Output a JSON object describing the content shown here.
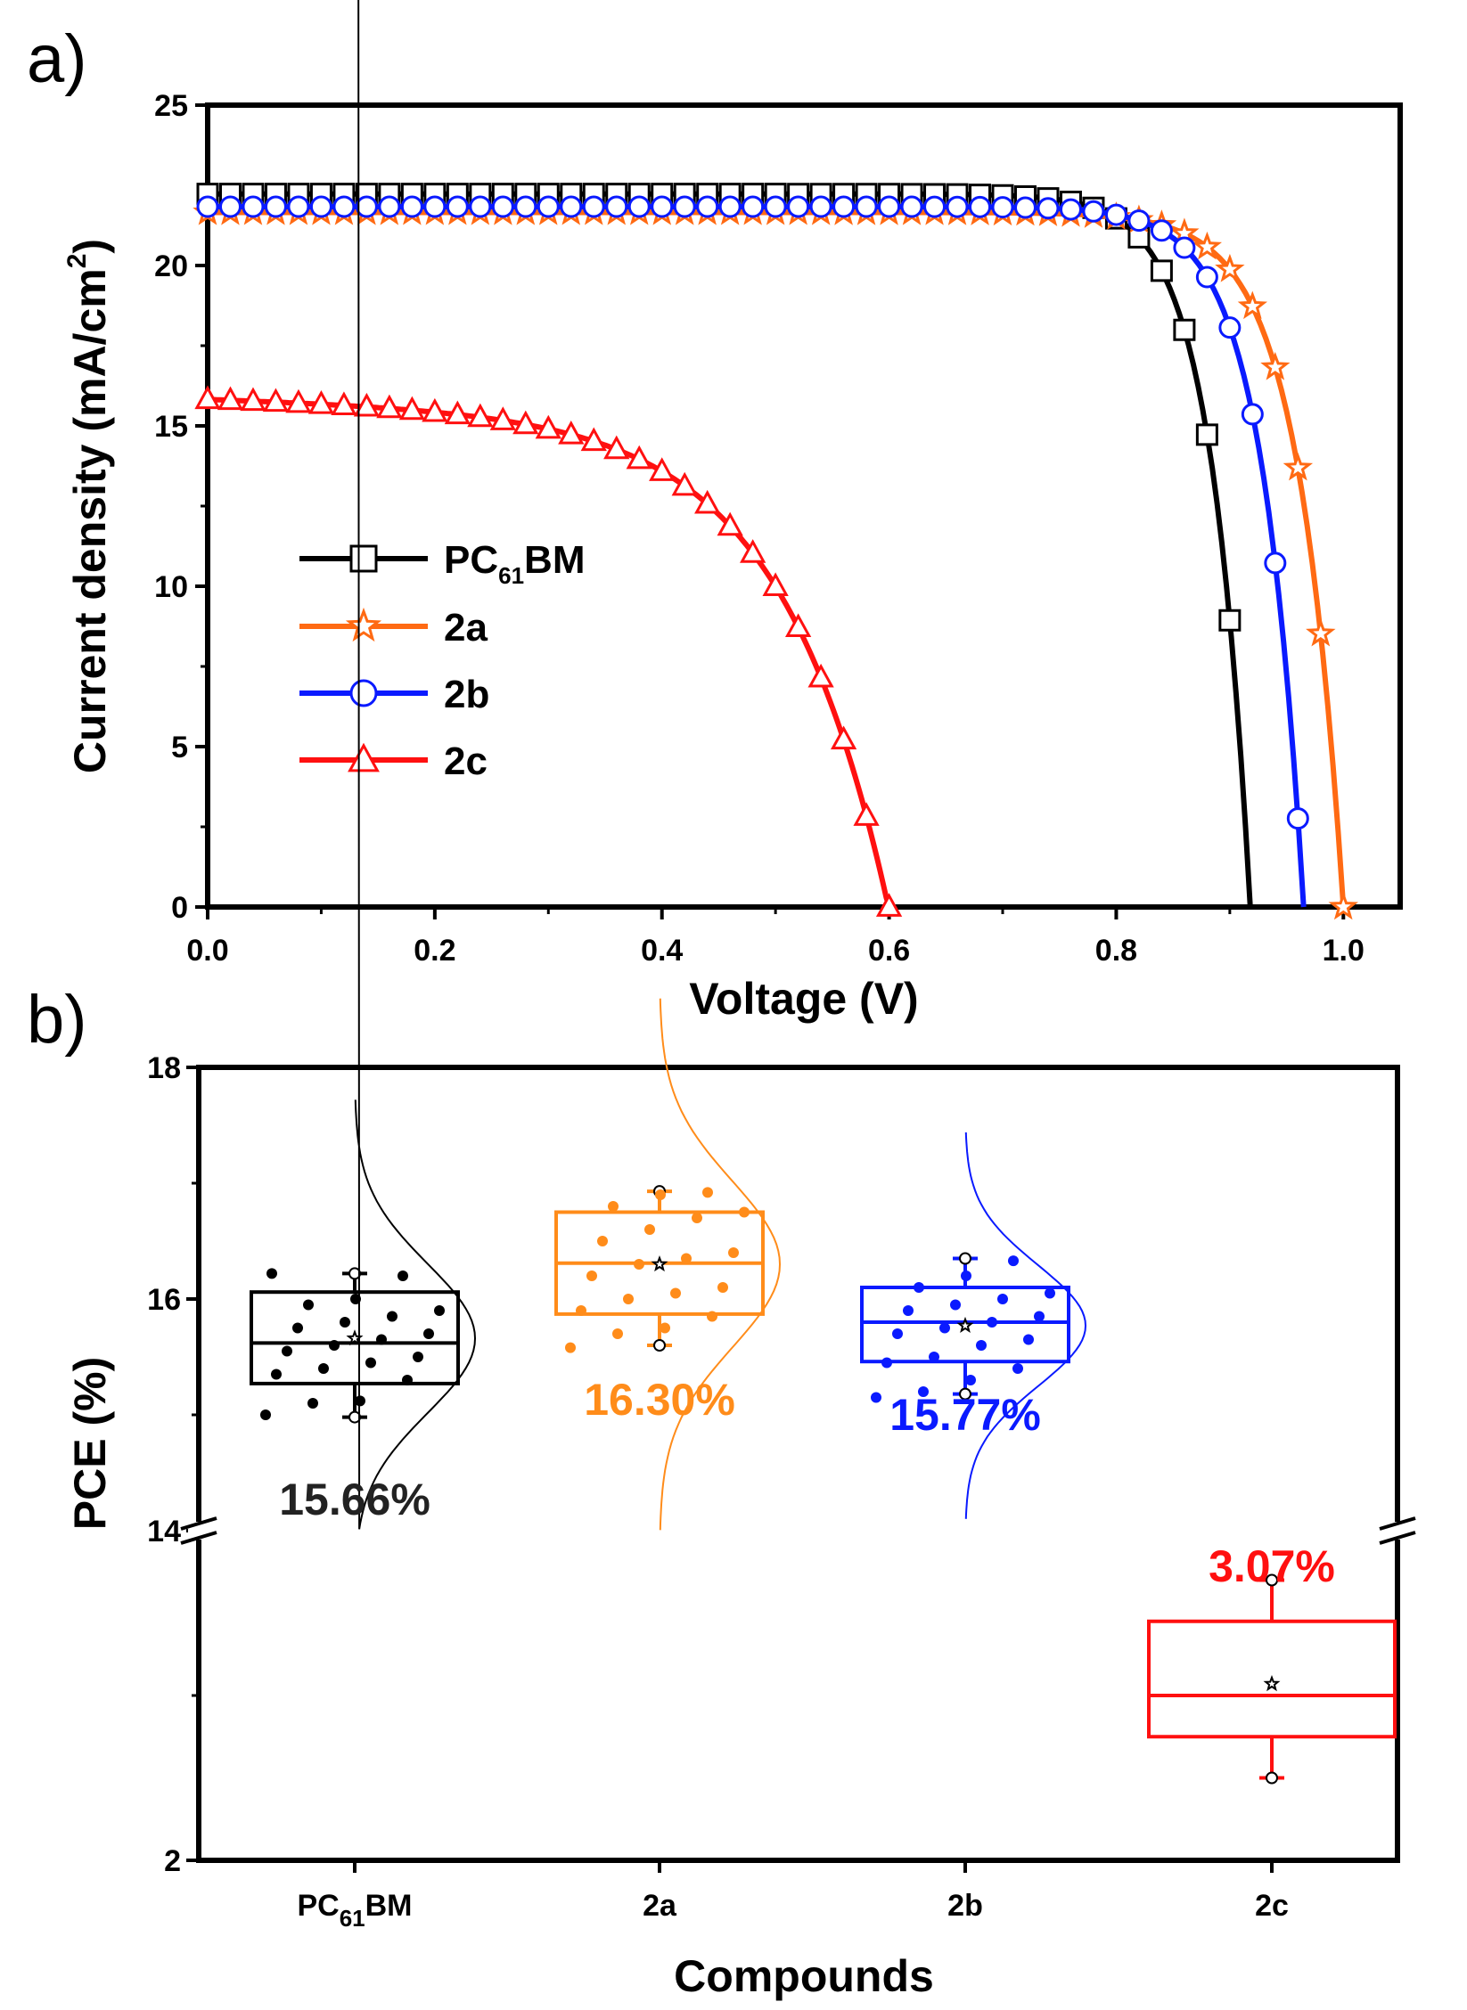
{
  "chart_data": [
    {
      "panel": "a)",
      "type": "line",
      "xlabel": "Voltage (V)",
      "ylabel_pre": "Current density (mA/cm",
      "ylabel_sup": "2",
      "ylabel_post": ")",
      "xlim": [
        0.0,
        1.05
      ],
      "ylim": [
        0,
        25
      ],
      "xticks": [
        "0.0",
        "0.2",
        "0.4",
        "0.6",
        "0.8",
        "1.0"
      ],
      "yticks": [
        "0",
        "5",
        "10",
        "15",
        "20",
        "25"
      ],
      "legend_position": "middle-left",
      "series": [
        {
          "key": "pcbm",
          "name": "PC61BM",
          "label_main": "PC",
          "label_sub": "61",
          "label_tail": "BM",
          "color": "#000000",
          "marker": "square",
          "jsc": 21.8,
          "voc": 0.918,
          "knee": 0.78,
          "sharp": 0.035
        },
        {
          "key": "2a",
          "name": "2a",
          "label_main": "2a",
          "label_sub": "",
          "label_tail": "",
          "color": "#ff6a13",
          "marker": "star",
          "jsc": 21.0,
          "voc": 1.0,
          "knee": 0.86,
          "sharp": 0.04
        },
        {
          "key": "2b",
          "name": "2b",
          "label_main": "2b",
          "label_sub": "",
          "label_tail": "",
          "color": "#0a1aff",
          "marker": "circle",
          "jsc": 21.4,
          "voc": 0.965,
          "knee": 0.82,
          "sharp": 0.037
        },
        {
          "key": "2c",
          "name": "2c",
          "label_main": "2c",
          "label_sub": "",
          "label_tail": "",
          "color": "#ff1010",
          "marker": "triangle",
          "jsc": 15.2,
          "voc": 0.603,
          "knee": 0.3,
          "sharp": 0.095
        }
      ]
    },
    {
      "panel": "b)",
      "type": "box",
      "xlabel": "Compounds",
      "ylabel": "PCE (%)",
      "yticks": [
        "2",
        "14",
        "16",
        "18"
      ],
      "categories": [
        {
          "key": "pcbm",
          "label_main": "PC",
          "label_sub": "61",
          "label_tail": "BM",
          "color": "#000000",
          "q1": 15.27,
          "median": 15.62,
          "q3": 16.06,
          "mean": 15.66,
          "wlo": 14.98,
          "whi": 16.22,
          "value_label": "15.66%",
          "points": [
            15.0,
            15.1,
            15.12,
            15.3,
            15.35,
            15.4,
            15.45,
            15.5,
            15.55,
            15.6,
            15.65,
            15.7,
            15.75,
            15.8,
            15.85,
            15.9,
            15.95,
            16.0,
            16.2,
            16.22
          ]
        },
        {
          "key": "2a",
          "label_main": "2a",
          "label_sub": "",
          "label_tail": "",
          "color": "#ff8c1a",
          "q1": 15.87,
          "median": 16.31,
          "q3": 16.75,
          "mean": 16.3,
          "wlo": 15.6,
          "whi": 16.93,
          "value_label": "16.30%",
          "points": [
            15.58,
            15.7,
            15.75,
            15.85,
            15.9,
            16.0,
            16.05,
            16.1,
            16.2,
            16.3,
            16.35,
            16.4,
            16.5,
            16.6,
            16.7,
            16.75,
            16.8,
            16.9,
            16.92
          ]
        },
        {
          "key": "2b",
          "label_main": "2b",
          "label_sub": "",
          "label_tail": "",
          "color": "#0a1aff",
          "q1": 15.46,
          "median": 15.8,
          "q3": 16.1,
          "mean": 15.77,
          "wlo": 15.18,
          "whi": 16.35,
          "value_label": "15.77%",
          "points": [
            15.15,
            15.2,
            15.3,
            15.4,
            15.45,
            15.5,
            15.6,
            15.65,
            15.7,
            15.75,
            15.8,
            15.85,
            15.9,
            15.95,
            16.0,
            16.05,
            16.1,
            16.2,
            16.33
          ]
        },
        {
          "key": "2c",
          "label_main": "2c",
          "label_sub": "",
          "label_tail": "",
          "color": "#ff1010",
          "q1": 2.75,
          "median": 3.0,
          "q3": 3.45,
          "mean": 3.07,
          "wlo": 2.5,
          "whi": 3.7,
          "value_label": "3.07%",
          "points": []
        }
      ]
    }
  ]
}
